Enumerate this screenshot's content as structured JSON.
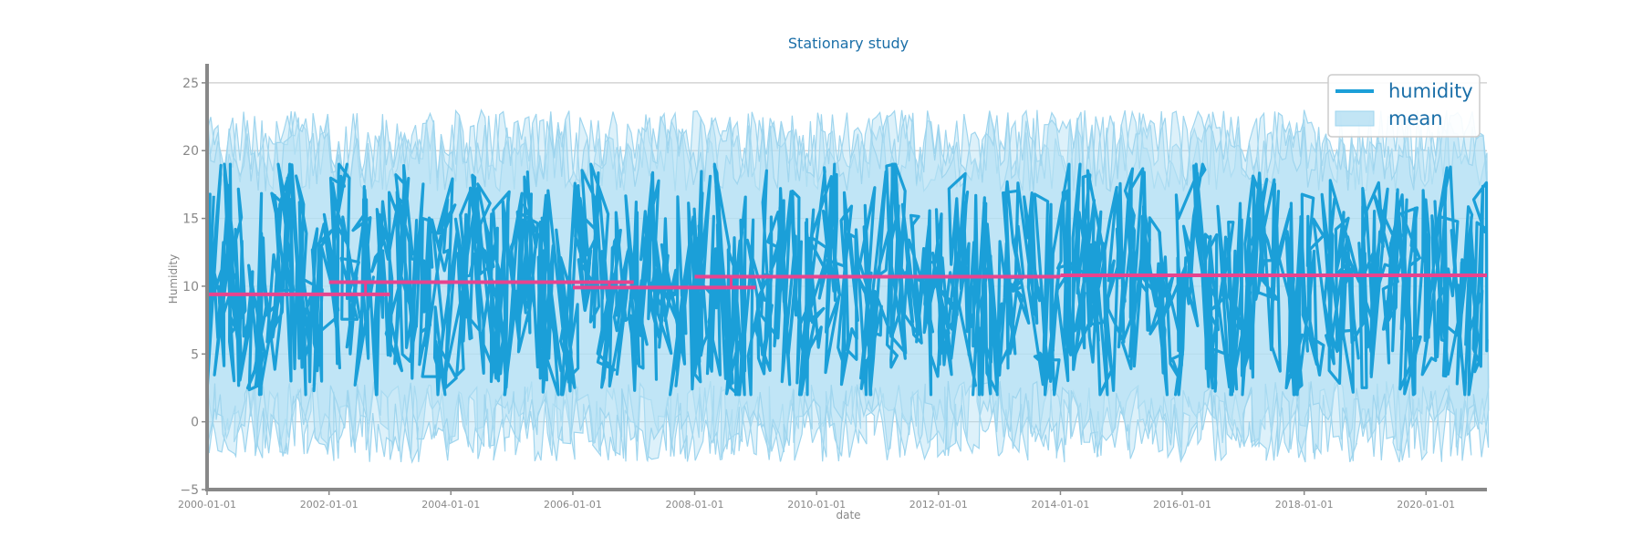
{
  "colors": {
    "humidity": "#1b9fd8",
    "band": "#b3dff3",
    "band_edge": "#9fd5ee",
    "mean": "#e8438e",
    "title": "#1b6fa8",
    "axis": "#888888",
    "grid": "#cccccc",
    "tick_text": "#888888",
    "legend_text": "#1b6fa8"
  },
  "chart_data": {
    "type": "line",
    "title": "Stationary study",
    "xlabel": "date",
    "ylabel": "Humidity",
    "xlim": [
      "2000-01-01",
      "2020-12-31"
    ],
    "ylim": [
      -5,
      26
    ],
    "x_ticks": [
      "2000-01-01",
      "2002-01-01",
      "2004-01-01",
      "2006-01-01",
      "2008-01-01",
      "2010-01-01",
      "2012-01-01",
      "2014-01-01",
      "2016-01-01",
      "2018-01-01",
      "2020-01-01"
    ],
    "y_ticks": [
      -5,
      0,
      5,
      10,
      15,
      20,
      25
    ],
    "grid": "horizontal",
    "legend_position": "top-right",
    "series": [
      {
        "name": "humidity",
        "style": "line",
        "note_values": "dense daily-like oscillation, approx range 2 to 19",
        "typical_low": 2,
        "typical_high": 19
      },
      {
        "name": "mean",
        "style": "band",
        "typical_low": -3,
        "typical_high": 23
      }
    ],
    "rolling_mean": {
      "segments": [
        {
          "start": "2000-01-01",
          "end": "2003-01-01",
          "value": 9.4
        },
        {
          "start": "2002-01-01",
          "end": "2007-01-01",
          "value": 10.3
        },
        {
          "start": "2006-01-01",
          "end": "2009-01-01",
          "value": 9.9
        },
        {
          "start": "2008-01-01",
          "end": "2014-01-01",
          "value": 10.7
        },
        {
          "start": "2014-01-01",
          "end": "2020-12-31",
          "value": 10.8
        }
      ]
    }
  }
}
